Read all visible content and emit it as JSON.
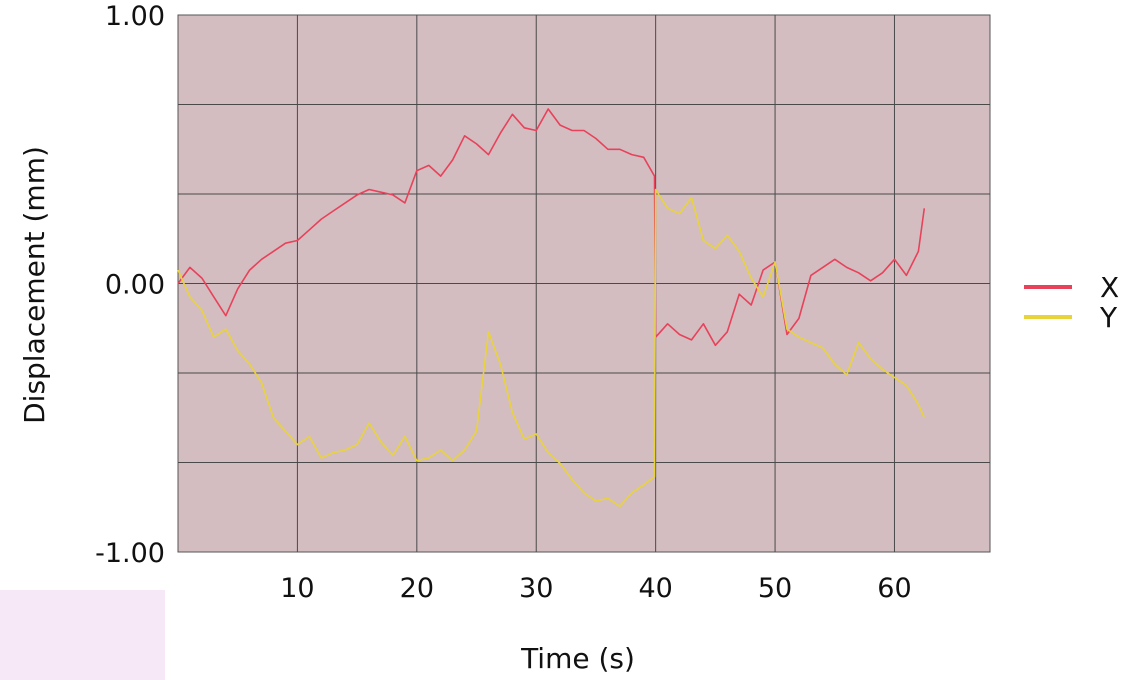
{
  "chart_data": {
    "type": "line",
    "xlabel": "Time (s)",
    "ylabel": "Displacement (mm)",
    "xlim": [
      0,
      68
    ],
    "ylim": [
      -1.0,
      1.0
    ],
    "x_ticks": [
      {
        "value": 10,
        "label": "10"
      },
      {
        "value": 20,
        "label": "20"
      },
      {
        "value": 30,
        "label": "30"
      },
      {
        "value": 40,
        "label": "40"
      },
      {
        "value": 50,
        "label": "50"
      },
      {
        "value": 60,
        "label": "60"
      }
    ],
    "y_ticks": [
      {
        "value": 1.0,
        "label": "1.00"
      },
      {
        "value": 0.0,
        "label": "0.00"
      },
      {
        "value": -1.0,
        "label": "-1.00"
      }
    ],
    "grid": true,
    "plot_background": "#d3bdc1",
    "legend_position": "right",
    "series": [
      {
        "name": "X",
        "color": "#e8425a",
        "x": [
          0,
          1,
          2,
          3,
          4,
          5,
          6,
          7,
          8,
          9,
          10,
          11,
          12,
          13,
          14,
          15,
          16,
          17,
          18,
          19,
          20,
          21,
          22,
          23,
          24,
          25,
          26,
          27,
          28,
          29,
          30,
          31,
          32,
          33,
          34,
          35,
          36,
          37,
          38,
          39,
          39.9,
          40,
          41,
          42,
          43,
          44,
          45,
          46,
          47,
          48,
          49,
          50,
          51,
          52,
          53,
          54,
          55,
          56,
          57,
          58,
          59,
          60,
          61,
          62,
          62.5
        ],
        "values": [
          0.0,
          0.06,
          0.02,
          -0.05,
          -0.12,
          -0.02,
          0.05,
          0.09,
          0.12,
          0.15,
          0.16,
          0.2,
          0.24,
          0.27,
          0.3,
          0.33,
          0.35,
          0.34,
          0.33,
          0.3,
          0.42,
          0.44,
          0.4,
          0.46,
          0.55,
          0.52,
          0.48,
          0.56,
          0.63,
          0.58,
          0.57,
          0.65,
          0.59,
          0.57,
          0.57,
          0.54,
          0.5,
          0.5,
          0.48,
          0.47,
          0.4,
          -0.2,
          -0.15,
          -0.19,
          -0.21,
          -0.15,
          -0.23,
          -0.18,
          -0.04,
          -0.08,
          0.05,
          0.08,
          -0.19,
          -0.13,
          0.03,
          0.06,
          0.09,
          0.06,
          0.04,
          0.01,
          0.04,
          0.09,
          0.03,
          0.12,
          0.28
        ]
      },
      {
        "name": "Y",
        "color": "#e9d33b",
        "x": [
          0,
          1,
          2,
          3,
          4,
          5,
          6,
          7,
          8,
          9,
          10,
          11,
          12,
          13,
          14,
          15,
          16,
          17,
          18,
          19,
          20,
          21,
          22,
          23,
          24,
          25,
          26,
          27,
          28,
          29,
          30,
          31,
          32,
          33,
          34,
          35,
          36,
          37,
          38,
          39,
          39.9,
          40,
          41,
          42,
          43,
          44,
          45,
          46,
          47,
          48,
          49,
          50,
          51,
          52,
          53,
          54,
          55,
          56,
          57,
          58,
          59,
          60,
          61,
          62,
          62.5
        ],
        "values": [
          0.05,
          -0.05,
          -0.1,
          -0.2,
          -0.17,
          -0.25,
          -0.3,
          -0.37,
          -0.5,
          -0.55,
          -0.6,
          -0.57,
          -0.65,
          -0.63,
          -0.62,
          -0.6,
          -0.52,
          -0.59,
          -0.64,
          -0.57,
          -0.66,
          -0.65,
          -0.62,
          -0.66,
          -0.62,
          -0.55,
          -0.18,
          -0.3,
          -0.48,
          -0.58,
          -0.56,
          -0.63,
          -0.67,
          -0.73,
          -0.78,
          -0.81,
          -0.8,
          -0.83,
          -0.78,
          -0.75,
          -0.72,
          0.35,
          0.28,
          0.26,
          0.32,
          0.16,
          0.13,
          0.18,
          0.12,
          0.02,
          -0.05,
          0.08,
          -0.17,
          -0.2,
          -0.22,
          -0.24,
          -0.3,
          -0.34,
          -0.22,
          -0.28,
          -0.32,
          -0.35,
          -0.38,
          -0.45,
          -0.5
        ]
      }
    ]
  }
}
